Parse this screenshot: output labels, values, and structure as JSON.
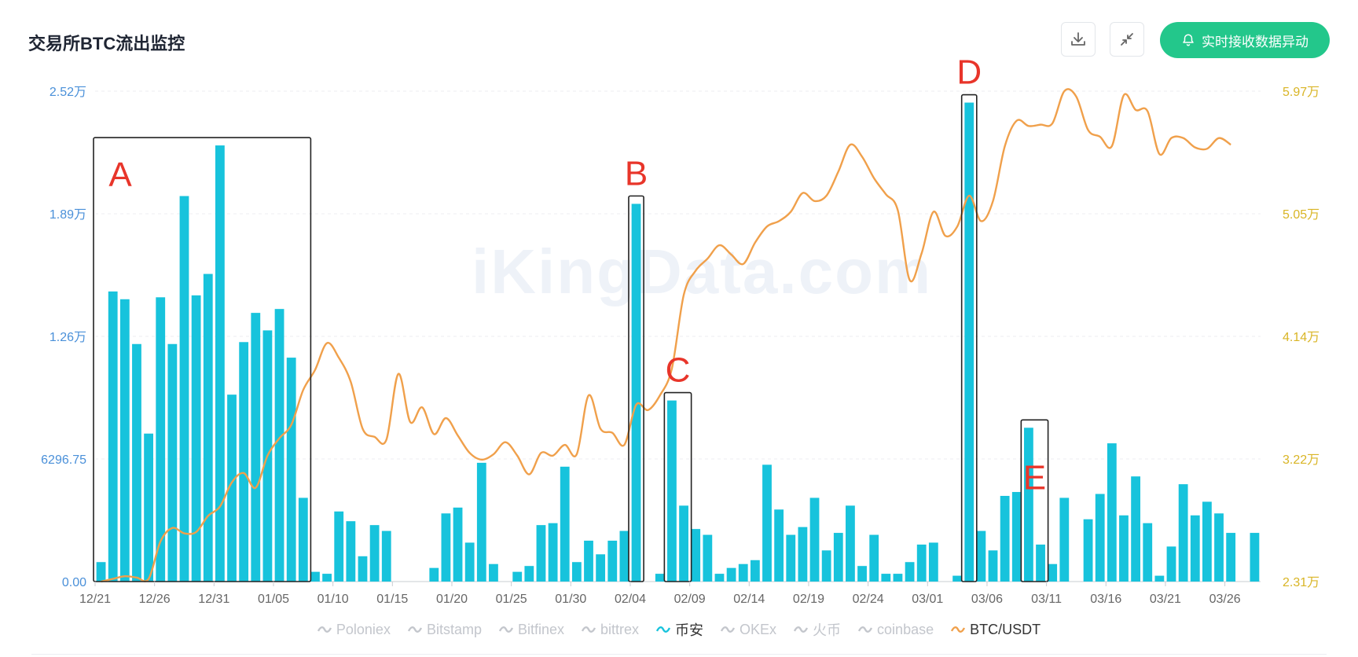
{
  "header": {
    "title": "交易所BTC流出监控",
    "alert_button_label": "实时接收数据异动"
  },
  "watermark": "iKingData.com",
  "chart_data": {
    "type": "bar+line",
    "title": "交易所BTC流出监控",
    "left_axis": {
      "min": 0,
      "max": 25187,
      "ticks": [
        "0.00",
        "6296.75",
        "1.26万",
        "1.89万",
        "2.52万"
      ]
    },
    "right_axis": {
      "min": 23100,
      "max": 59700,
      "ticks": [
        "2.31万",
        "3.22万",
        "4.14万",
        "5.05万",
        "5.97万"
      ]
    },
    "x_tick_labels": [
      "12/21",
      "12/26",
      "12/31",
      "01/05",
      "01/10",
      "01/15",
      "01/20",
      "01/25",
      "01/30",
      "02/04",
      "02/09",
      "02/14",
      "02/19",
      "02/24",
      "03/01",
      "03/06",
      "03/11",
      "03/16",
      "03/21",
      "03/26"
    ],
    "x_tick_index": [
      0,
      5,
      10,
      15,
      20,
      25,
      30,
      35,
      40,
      45,
      50,
      55,
      60,
      65,
      70,
      75,
      80,
      85,
      90,
      95
    ],
    "legend": [
      {
        "name": "Poloniex",
        "active": false
      },
      {
        "name": "Bitstamp",
        "active": false
      },
      {
        "name": "Bitfinex",
        "active": false
      },
      {
        "name": "bittrex",
        "active": false
      },
      {
        "name": "币安",
        "active": true,
        "color": "#17c3dc"
      },
      {
        "name": "OKEx",
        "active": false
      },
      {
        "name": "火币",
        "active": false
      },
      {
        "name": "coinbase",
        "active": false
      },
      {
        "name": "BTC/USDT",
        "active": true,
        "color": "#f0a04b"
      }
    ],
    "series": [
      {
        "name": "币安",
        "kind": "bar",
        "axis": "left",
        "color": "#17c3dc",
        "values": [
          1000,
          14900,
          14500,
          12200,
          7600,
          14600,
          12200,
          19800,
          14700,
          15800,
          22400,
          9600,
          12300,
          13800,
          12900,
          14000,
          11500,
          4300,
          500,
          400,
          3600,
          3100,
          1300,
          2900,
          2600,
          0,
          0,
          0,
          700,
          3500,
          3800,
          2000,
          6100,
          900,
          0,
          500,
          800,
          2900,
          3000,
          5900,
          1000,
          2100,
          1400,
          2100,
          2600,
          19400,
          0,
          400,
          9300,
          3900,
          2700,
          2400,
          400,
          700,
          900,
          1100,
          6000,
          3700,
          2400,
          2800,
          4300,
          1600,
          2500,
          3900,
          800,
          2400,
          400,
          400,
          1000,
          1900,
          2000,
          0,
          300,
          24600,
          2600,
          1600,
          4400,
          4600,
          7900,
          1900,
          900,
          4300,
          0,
          3200,
          4500,
          7100,
          3400,
          5400,
          3000,
          300,
          1800,
          5000,
          3400,
          4100,
          3500,
          2500,
          0,
          2500
        ]
      },
      {
        "name": "BTC/USDT",
        "kind": "line",
        "axis": "right",
        "color": "#f0a04b",
        "values": [
          23100,
          23300,
          23500,
          23400,
          23300,
          26100,
          27100,
          26700,
          26800,
          28000,
          28700,
          30500,
          31200,
          30100,
          32500,
          33800,
          34800,
          37400,
          38900,
          40900,
          39800,
          38000,
          34500,
          33900,
          33700,
          38600,
          35000,
          36100,
          34100,
          35300,
          34000,
          32700,
          32200,
          32600,
          33500,
          32500,
          31100,
          32700,
          32500,
          33300,
          32600,
          37000,
          34500,
          34200,
          33300,
          36300,
          35900,
          37000,
          39000,
          44500,
          46300,
          47200,
          48200,
          47500,
          46800,
          48400,
          49600,
          50000,
          50700,
          52100,
          51500,
          51900,
          53700,
          55700,
          54800,
          53200,
          52000,
          50800,
          45600,
          47600,
          50700,
          48900,
          49600,
          51900,
          50000,
          51500,
          55600,
          57500,
          57100,
          57200,
          57300,
          59700,
          59300,
          56800,
          56300,
          55600,
          59400,
          58300,
          58200,
          55000,
          56200,
          56200,
          55500,
          55400,
          56200,
          55700
        ]
      }
    ],
    "annotations": [
      {
        "label": "A",
        "from": 0,
        "to": 17
      },
      {
        "label": "B",
        "from": 45,
        "to": 45
      },
      {
        "label": "C",
        "from": 48,
        "to": 49
      },
      {
        "label": "D",
        "from": 73,
        "to": 73
      },
      {
        "label": "E",
        "from": 78,
        "to": 79
      }
    ]
  }
}
